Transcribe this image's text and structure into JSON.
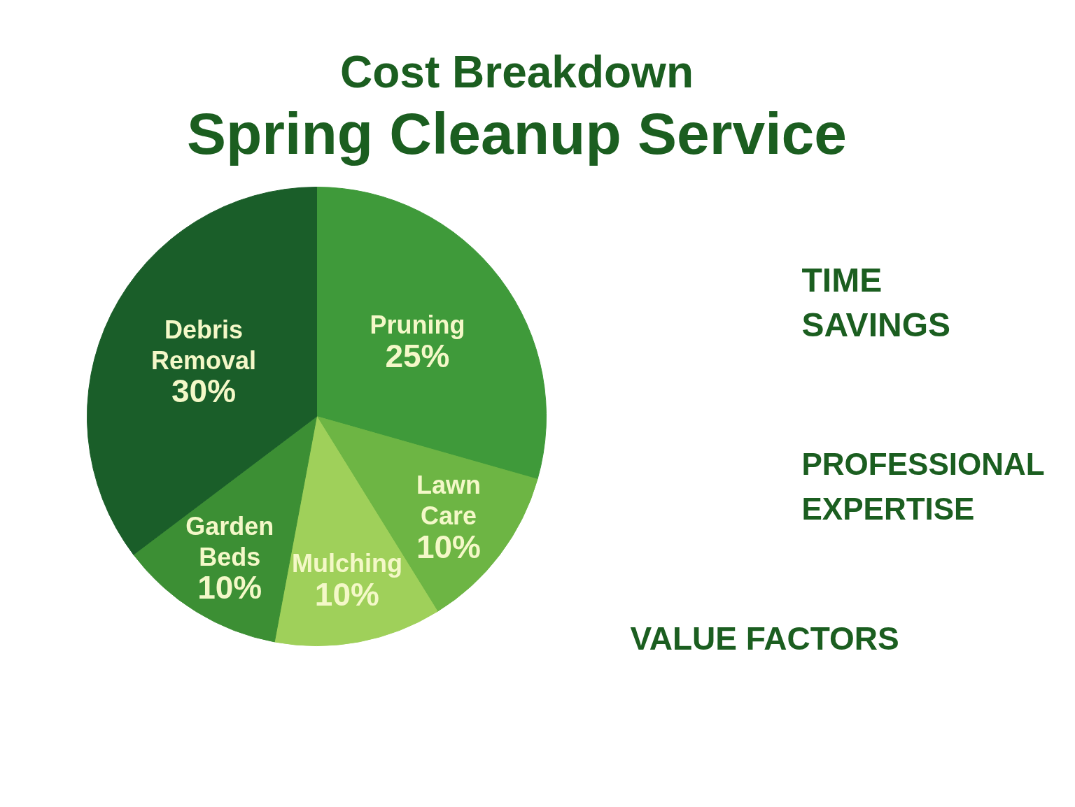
{
  "chart_data": {
    "type": "pie",
    "title": "Cost Breakdown",
    "subtitle": "Spring Cleanup Service",
    "categories": [
      "Pruning",
      "Lawn Care",
      "Mulching",
      "Garden Beds",
      "Debris Removal"
    ],
    "values": [
      25,
      10,
      10,
      10,
      30
    ],
    "value_labels": [
      "25%",
      "10%",
      "10%",
      "10%",
      "30%"
    ],
    "colors": [
      "#3f9a3a",
      "#6db544",
      "#9fd05a",
      "#3c8f34",
      "#1a5e29"
    ],
    "annotations": [
      "TIME SAVINGS",
      "PROFESSIONAL EXPERTISE",
      "VALUE FACTORS"
    ]
  }
}
